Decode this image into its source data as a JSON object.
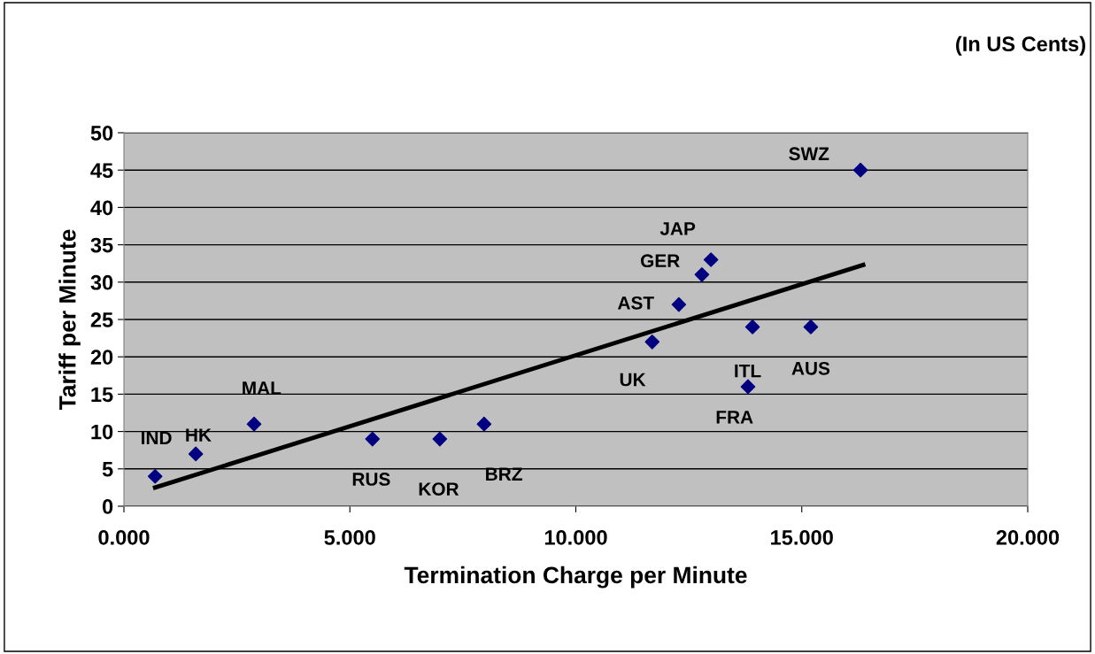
{
  "chart_data": {
    "type": "scatter",
    "xlabel": "Termination Charge per Minute",
    "ylabel": "Tariff per Minute",
    "series": [
      {
        "color": "#000080",
        "marker": "diamond",
        "x": [
          0.69,
          1.59,
          2.88,
          5.5,
          6.99,
          7.97,
          11.69,
          12.28,
          12.79,
          12.99,
          13.91,
          13.81,
          15.2,
          16.3
        ],
        "values": [
          4,
          7,
          11,
          9,
          9,
          11,
          22,
          27,
          31,
          33,
          24,
          16,
          24,
          45
        ]
      },
      {
        "type": "line",
        "color": "#000000",
        "marker": "none",
        "line_style": "solid",
        "x": [
          0.69,
          16.36
        ],
        "values": [
          2.5,
          32.3
        ]
      }
    ],
    "annotations": [
      "(In US Cents)",
      {
        "text": "IND",
        "x": 0.69,
        "y": 4
      },
      {
        "text": "HK",
        "x": 1.59,
        "y": 7
      },
      {
        "text": "MAL",
        "x": 2.88,
        "y": 11
      },
      {
        "text": "RUS",
        "x": 5.5,
        "y": 9
      },
      {
        "text": "KOR",
        "x": 6.99,
        "y": 9
      },
      {
        "text": "BRZ",
        "x": 7.97,
        "y": 11
      },
      {
        "text": "UK",
        "x": 11.69,
        "y": 22
      },
      {
        "text": "AST",
        "x": 12.28,
        "y": 27
      },
      {
        "text": "GER",
        "x": 12.79,
        "y": 31
      },
      {
        "text": "JAP",
        "x": 12.99,
        "y": 33
      },
      {
        "text": "ITL",
        "x": 13.91,
        "y": 24
      },
      {
        "text": "FRA",
        "x": 13.81,
        "y": 16
      },
      {
        "text": "AUS",
        "x": 15.2,
        "y": 24
      },
      {
        "text": "SWZ",
        "x": 16.3,
        "y": 45
      }
    ],
    "xlim": [
      0,
      20
    ],
    "xticks": [
      {
        "value": 0,
        "label": "0.000"
      },
      {
        "value": 5,
        "label": "5.000"
      },
      {
        "value": 10,
        "label": "10.000"
      },
      {
        "value": 15,
        "label": "15.000"
      },
      {
        "value": 20,
        "label": "20.000"
      }
    ],
    "ylim": [
      0,
      50
    ],
    "yticks": [
      0,
      5,
      10,
      15,
      20,
      25,
      30,
      35,
      40,
      45,
      50
    ],
    "grid": "y",
    "legend": false
  }
}
